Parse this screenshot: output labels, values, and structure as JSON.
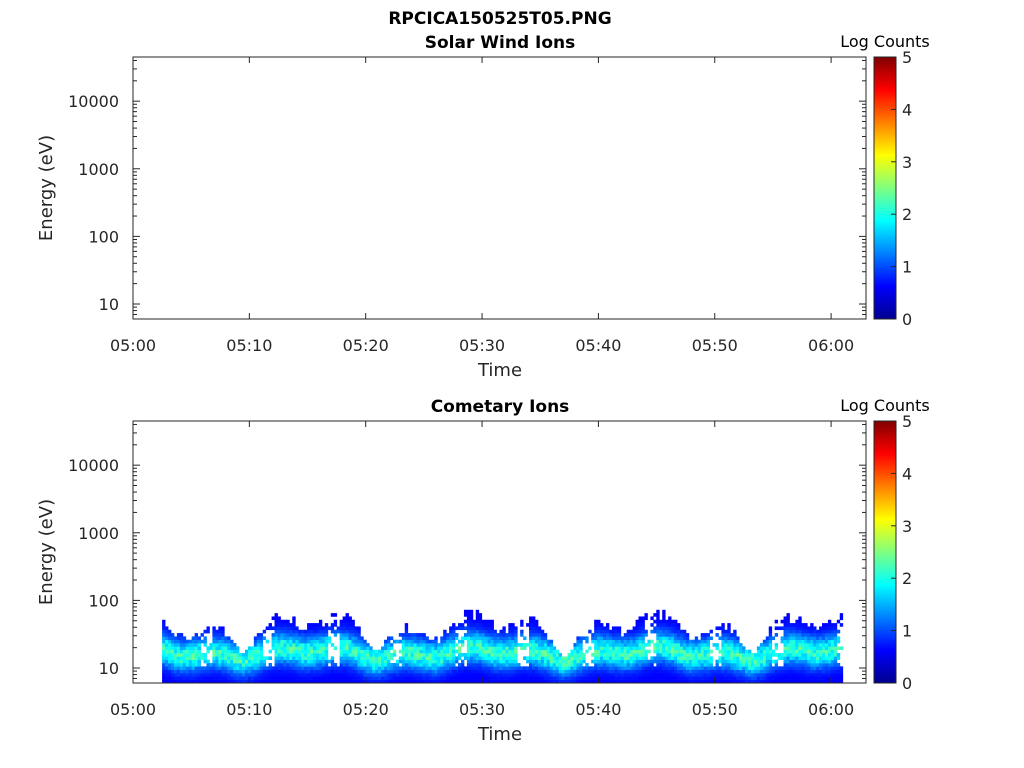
{
  "figure": {
    "title": "RPCICA150525T05.PNG"
  },
  "chart_data": [
    {
      "type": "heatmap",
      "title": "Solar Wind Ions",
      "xlabel": "Time",
      "ylabel": "Energy (eV)",
      "x_ticks": [
        "05:00",
        "05:10",
        "05:20",
        "05:30",
        "05:40",
        "05:50",
        "06:00"
      ],
      "y_ticks": [
        "10",
        "100",
        "1000",
        "10000"
      ],
      "y_scale": "log",
      "y_range_eV": [
        6,
        45000
      ],
      "x_range": [
        "05:00",
        "06:03"
      ],
      "colorbar": {
        "label": "Log Counts",
        "ticks": [
          "0",
          "1",
          "2",
          "3",
          "4",
          "5"
        ],
        "range": [
          0,
          5
        ],
        "colormap": "jet"
      },
      "data": "empty",
      "grid": false
    },
    {
      "type": "heatmap",
      "title": "Cometary Ions",
      "xlabel": "Time",
      "ylabel": "Energy (eV)",
      "x_ticks": [
        "05:00",
        "05:10",
        "05:20",
        "05:30",
        "05:40",
        "05:50",
        "06:00"
      ],
      "y_ticks": [
        "10",
        "100",
        "1000",
        "10000"
      ],
      "y_scale": "log",
      "y_range_eV": [
        6,
        45000
      ],
      "x_range": [
        "05:00",
        "06:03"
      ],
      "colorbar": {
        "label": "Log Counts",
        "ticks": [
          "0",
          "1",
          "2",
          "3",
          "4",
          "5"
        ],
        "range": [
          0,
          5
        ],
        "colormap": "jet"
      },
      "data_time_range": [
        "05:02.5",
        "06:01"
      ],
      "data_energy_range_eV": [
        6,
        80
      ],
      "grid": false
    }
  ]
}
